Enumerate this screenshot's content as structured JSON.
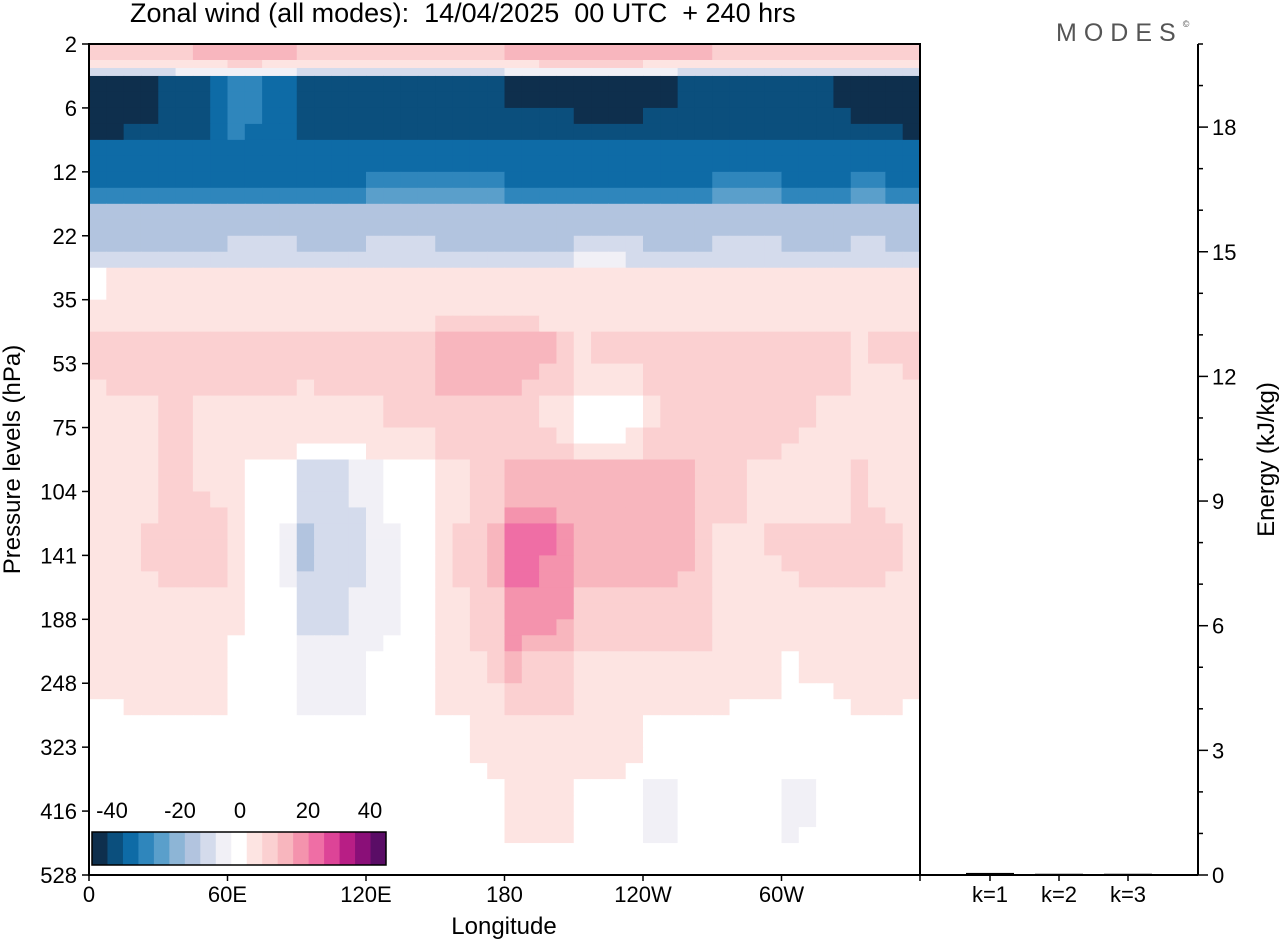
{
  "header": {
    "title": "Zonal wind (all modes):  14/04/2025  00 UTC  + 240 hrs",
    "brand": "MODES",
    "brand_mark": "©"
  },
  "chart_data": [
    {
      "type": "heatmap",
      "title": "Zonal wind (all modes):  14/04/2025  00 UTC  + 240 hrs",
      "xlabel": "Longitude",
      "ylabel": "Pressure levels (hPa)",
      "x_ticks": [
        "0",
        "60E",
        "120E",
        "180",
        "120W",
        "60W"
      ],
      "y_ticks": [
        "2",
        "6",
        "12",
        "22",
        "35",
        "53",
        "75",
        "104",
        "141",
        "188",
        "248",
        "323",
        "416",
        "528"
      ],
      "colorbar": {
        "tick_labels": [
          "-40",
          "-20",
          "0",
          "20",
          "40"
        ],
        "range": [
          -40,
          40
        ],
        "colors": [
          "#0e2f4d",
          "#0b4f7d",
          "#0e6ba6",
          "#2f86bc",
          "#5a9fcb",
          "#8db5d6",
          "#b2c4df",
          "#d4dbec",
          "#f1f0f6",
          "#ffffff",
          "#fde4e2",
          "#fbd0d1",
          "#f8b6be",
          "#f493ad",
          "#ef6ea5",
          "#dd4497",
          "#b81e85",
          "#8a0f78",
          "#5a0d66"
        ]
      },
      "field_levels": [
        {
          "level": "2",
          "wind": [
            9,
            10,
            12,
            9,
            8,
            9,
            12,
            14,
            12,
            9,
            8,
            9
          ]
        },
        {
          "level": "6",
          "wind": [
            -40,
            -36,
            -25,
            -34,
            -34,
            -35,
            -36,
            -37,
            -36,
            -35,
            -34,
            -39
          ]
        },
        {
          "level": "12",
          "wind": [
            -31,
            -30,
            -30,
            -31,
            -29,
            -28,
            -30,
            -31,
            -31,
            -29,
            -30,
            -29
          ]
        },
        {
          "level": "22",
          "wind": [
            -14,
            -13,
            -12,
            -13,
            -12,
            -13,
            -14,
            -12,
            -13,
            -12,
            -13,
            -12
          ]
        },
        {
          "level": "35",
          "wind": [
            2,
            3,
            3,
            3,
            3,
            3,
            3,
            4,
            3,
            3,
            3,
            3
          ]
        },
        {
          "level": "53",
          "wind": [
            8,
            9,
            8,
            7,
            8,
            13,
            13,
            6,
            8,
            9,
            9,
            6
          ]
        },
        {
          "level": "75",
          "wind": [
            3,
            7,
            4,
            5,
            6,
            8,
            9,
            -2,
            6,
            8,
            7,
            4
          ]
        },
        {
          "level": "104",
          "wind": [
            2,
            7,
            4,
            -8,
            -3,
            4,
            13,
            11,
            13,
            7,
            4,
            7
          ]
        },
        {
          "level": "141",
          "wind": [
            4,
            10,
            5,
            -12,
            -4,
            3,
            22,
            13,
            14,
            6,
            7,
            8
          ]
        },
        {
          "level": "188",
          "wind": [
            4,
            6,
            3,
            -8,
            -4,
            3,
            19,
            10,
            10,
            5,
            5,
            5
          ]
        },
        {
          "level": "248",
          "wind": [
            3,
            3,
            2,
            -4,
            -2,
            3,
            11,
            6,
            6,
            3,
            2,
            3
          ]
        },
        {
          "level": "323",
          "wind": [
            0,
            2,
            1,
            -2,
            -1,
            1,
            6,
            4,
            2,
            1,
            0,
            1
          ]
        },
        {
          "level": "416",
          "wind": [
            -2,
            1,
            0,
            -1,
            -2,
            -1,
            3,
            2,
            -3,
            0,
            -3,
            0
          ]
        },
        {
          "level": "528",
          "wind": [
            -1,
            0,
            0,
            0,
            -1,
            0,
            2,
            1,
            -2,
            0,
            -1,
            -1
          ]
        }
      ]
    },
    {
      "type": "bar",
      "ylabel": "Energy (kJ/kg)",
      "categories": [
        "k=1",
        "k=2",
        "k=3"
      ],
      "values": [
        0.05,
        0.03,
        0.03
      ],
      "ylim": [
        0,
        20
      ],
      "y_ticks": [
        "0",
        "3",
        "6",
        "9",
        "12",
        "15",
        "18"
      ]
    }
  ]
}
